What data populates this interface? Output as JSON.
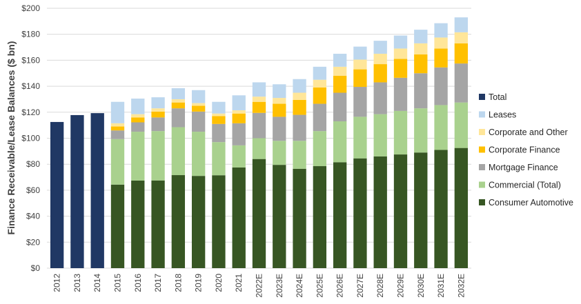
{
  "chart_data": {
    "type": "bar",
    "stacked": true,
    "ylabel": "Finance Receivable/Lease Balances ($ bn)",
    "xlabel": "",
    "ylim": [
      0,
      200
    ],
    "yticks": [
      "$0",
      "$20",
      "$40",
      "$60",
      "$80",
      "$100",
      "$120",
      "$140",
      "$160",
      "$180",
      "$200"
    ],
    "grid": true,
    "legend_position": "right",
    "categories": [
      "2012",
      "2013",
      "2014",
      "2015",
      "2016",
      "2017",
      "2018",
      "2019",
      "2020",
      "2021",
      "2022E",
      "2023E",
      "2024E",
      "2025E",
      "2026E",
      "2027E",
      "2028E",
      "2029E",
      "2030E",
      "2031E",
      "2032E"
    ],
    "series": [
      {
        "name": "Total",
        "color": "#203864",
        "values": [
          112.5,
          117.8,
          119.3,
          0,
          0,
          0,
          0,
          0,
          0,
          0,
          0,
          0,
          0,
          0,
          0,
          0,
          0,
          0,
          0,
          0,
          0
        ]
      },
      {
        "name": "Consumer Automotive",
        "color": "#375623",
        "values": [
          0,
          0,
          0,
          64.3,
          67.4,
          67.5,
          71.6,
          71.0,
          71.5,
          77.5,
          84.0,
          79.5,
          76.5,
          78.5,
          81.5,
          84.5,
          86.0,
          87.5,
          89.0,
          91.0,
          92.5
        ]
      },
      {
        "name": "Commercial (Total)",
        "color": "#a9d18e",
        "values": [
          0,
          0,
          0,
          35.0,
          37.6,
          38.0,
          36.9,
          34.0,
          25.5,
          17.0,
          16.0,
          18.5,
          21.5,
          27.0,
          31.5,
          32.0,
          32.5,
          33.5,
          34.0,
          34.5,
          35.0
        ]
      },
      {
        "name": "Mortgage Finance",
        "color": "#a5a5a5",
        "values": [
          0,
          0,
          0,
          6.7,
          7.2,
          10.5,
          14.5,
          15.5,
          14.0,
          17.0,
          19.5,
          18.5,
          20.0,
          21.0,
          22.0,
          23.0,
          24.5,
          25.5,
          27.0,
          29.0,
          30.0
        ]
      },
      {
        "name": "Corporate Finance",
        "color": "#ffc000",
        "values": [
          0,
          0,
          0,
          3.0,
          3.8,
          4.5,
          4.5,
          4.5,
          6.0,
          7.5,
          8.5,
          10.0,
          11.5,
          12.5,
          13.0,
          13.5,
          14.0,
          14.5,
          14.5,
          14.5,
          15.5
        ]
      },
      {
        "name": "Corporate and Other",
        "color": "#ffe699",
        "values": [
          0,
          0,
          0,
          2.5,
          2.5,
          2.5,
          2.5,
          2.0,
          2.0,
          2.5,
          4.0,
          4.5,
          5.5,
          6.0,
          7.0,
          7.5,
          8.0,
          8.0,
          8.5,
          8.5,
          8.5
        ]
      },
      {
        "name": "Leases",
        "color": "#bdd7ee",
        "values": [
          0,
          0,
          0,
          16.5,
          12.0,
          8.5,
          8.5,
          10.0,
          9.0,
          11.5,
          11.0,
          10.5,
          10.5,
          10.0,
          10.0,
          10.0,
          10.0,
          10.0,
          10.5,
          11.0,
          11.5
        ]
      }
    ],
    "legend_order": [
      "Total",
      "Leases",
      "Corporate and Other",
      "Corporate Finance",
      "Mortgage Finance",
      "Commercial (Total)",
      "Consumer Automotive"
    ]
  }
}
